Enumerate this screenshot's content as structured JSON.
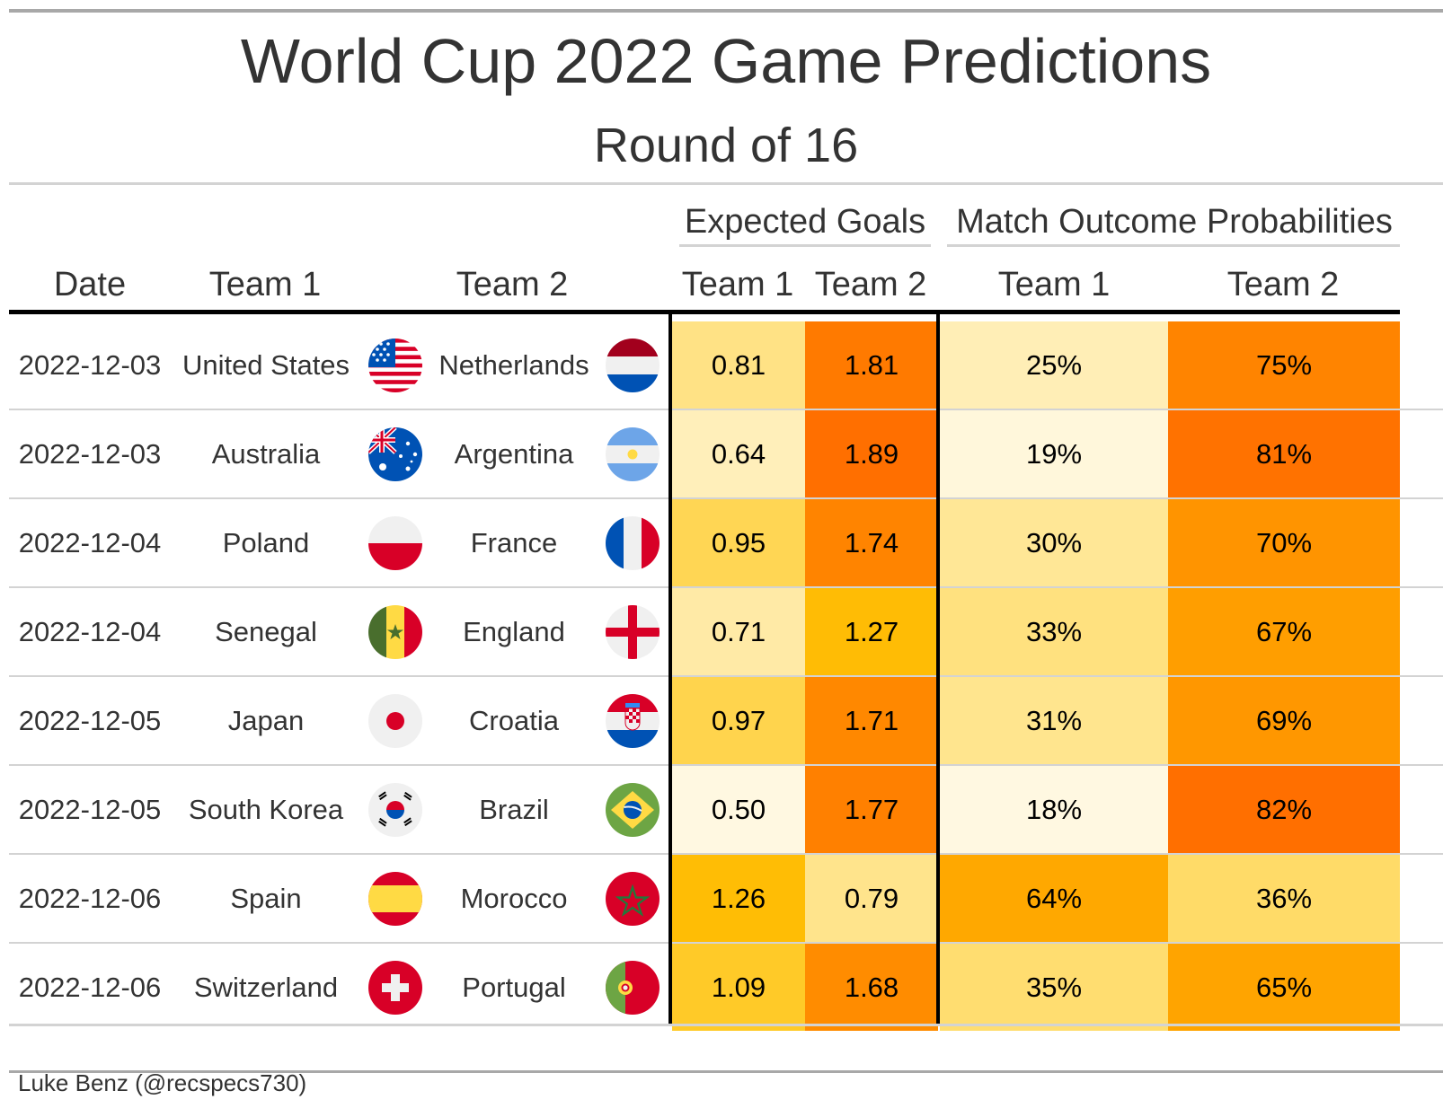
{
  "chart_data": {
    "type": "table",
    "title": "World Cup 2022 Game Predictions",
    "subtitle": "Round of 16",
    "spanners": {
      "expected_goals": "Expected Goals",
      "outcome_probs": "Match Outcome Probabilities"
    },
    "columns": [
      "Date",
      "Team 1",
      "Team 2",
      "Team 1",
      "Team 2",
      "Team 1",
      "Team 2"
    ],
    "rows": [
      {
        "date": "2022-12-03",
        "team1": "United States",
        "flag1": "usa-flag-icon",
        "team2": "Netherlands",
        "flag2": "netherlands-flag-icon",
        "xg1": "0.81",
        "xg2": "1.81",
        "p1": "25%",
        "p2": "75%"
      },
      {
        "date": "2022-12-03",
        "team1": "Australia",
        "flag1": "australia-flag-icon",
        "team2": "Argentina",
        "flag2": "argentina-flag-icon",
        "xg1": "0.64",
        "xg2": "1.89",
        "p1": "19%",
        "p2": "81%"
      },
      {
        "date": "2022-12-04",
        "team1": "Poland",
        "flag1": "poland-flag-icon",
        "team2": "France",
        "flag2": "france-flag-icon",
        "xg1": "0.95",
        "xg2": "1.74",
        "p1": "30%",
        "p2": "70%"
      },
      {
        "date": "2022-12-04",
        "team1": "Senegal",
        "flag1": "senegal-flag-icon",
        "team2": "England",
        "flag2": "england-flag-icon",
        "xg1": "0.71",
        "xg2": "1.27",
        "p1": "33%",
        "p2": "67%"
      },
      {
        "date": "2022-12-05",
        "team1": "Japan",
        "flag1": "japan-flag-icon",
        "team2": "Croatia",
        "flag2": "croatia-flag-icon",
        "xg1": "0.97",
        "xg2": "1.71",
        "p1": "31%",
        "p2": "69%"
      },
      {
        "date": "2022-12-05",
        "team1": "South Korea",
        "flag1": "south-korea-flag-icon",
        "team2": "Brazil",
        "flag2": "brazil-flag-icon",
        "xg1": "0.50",
        "xg2": "1.77",
        "p1": "18%",
        "p2": "82%"
      },
      {
        "date": "2022-12-06",
        "team1": "Spain",
        "flag1": "spain-flag-icon",
        "team2": "Morocco",
        "flag2": "morocco-flag-icon",
        "xg1": "1.26",
        "xg2": "0.79",
        "p1": "64%",
        "p2": "36%"
      },
      {
        "date": "2022-12-06",
        "team1": "Switzerland",
        "flag1": "switzerland-flag-icon",
        "team2": "Portugal",
        "flag2": "portugal-flag-icon",
        "xg1": "1.09",
        "xg2": "1.68",
        "p1": "35%",
        "p2": "65%"
      }
    ],
    "color_scale": {
      "palette": [
        "#fff8e1",
        "#ffe9a0",
        "#ffd54f",
        "#ffc107",
        "#ffb300",
        "#ff8f00",
        "#ff6f00"
      ],
      "xg_range": [
        0.5,
        1.89
      ],
      "prob_range": [
        18,
        82
      ]
    }
  },
  "footer": {
    "credit": "Luke Benz (@recspecs730)"
  }
}
